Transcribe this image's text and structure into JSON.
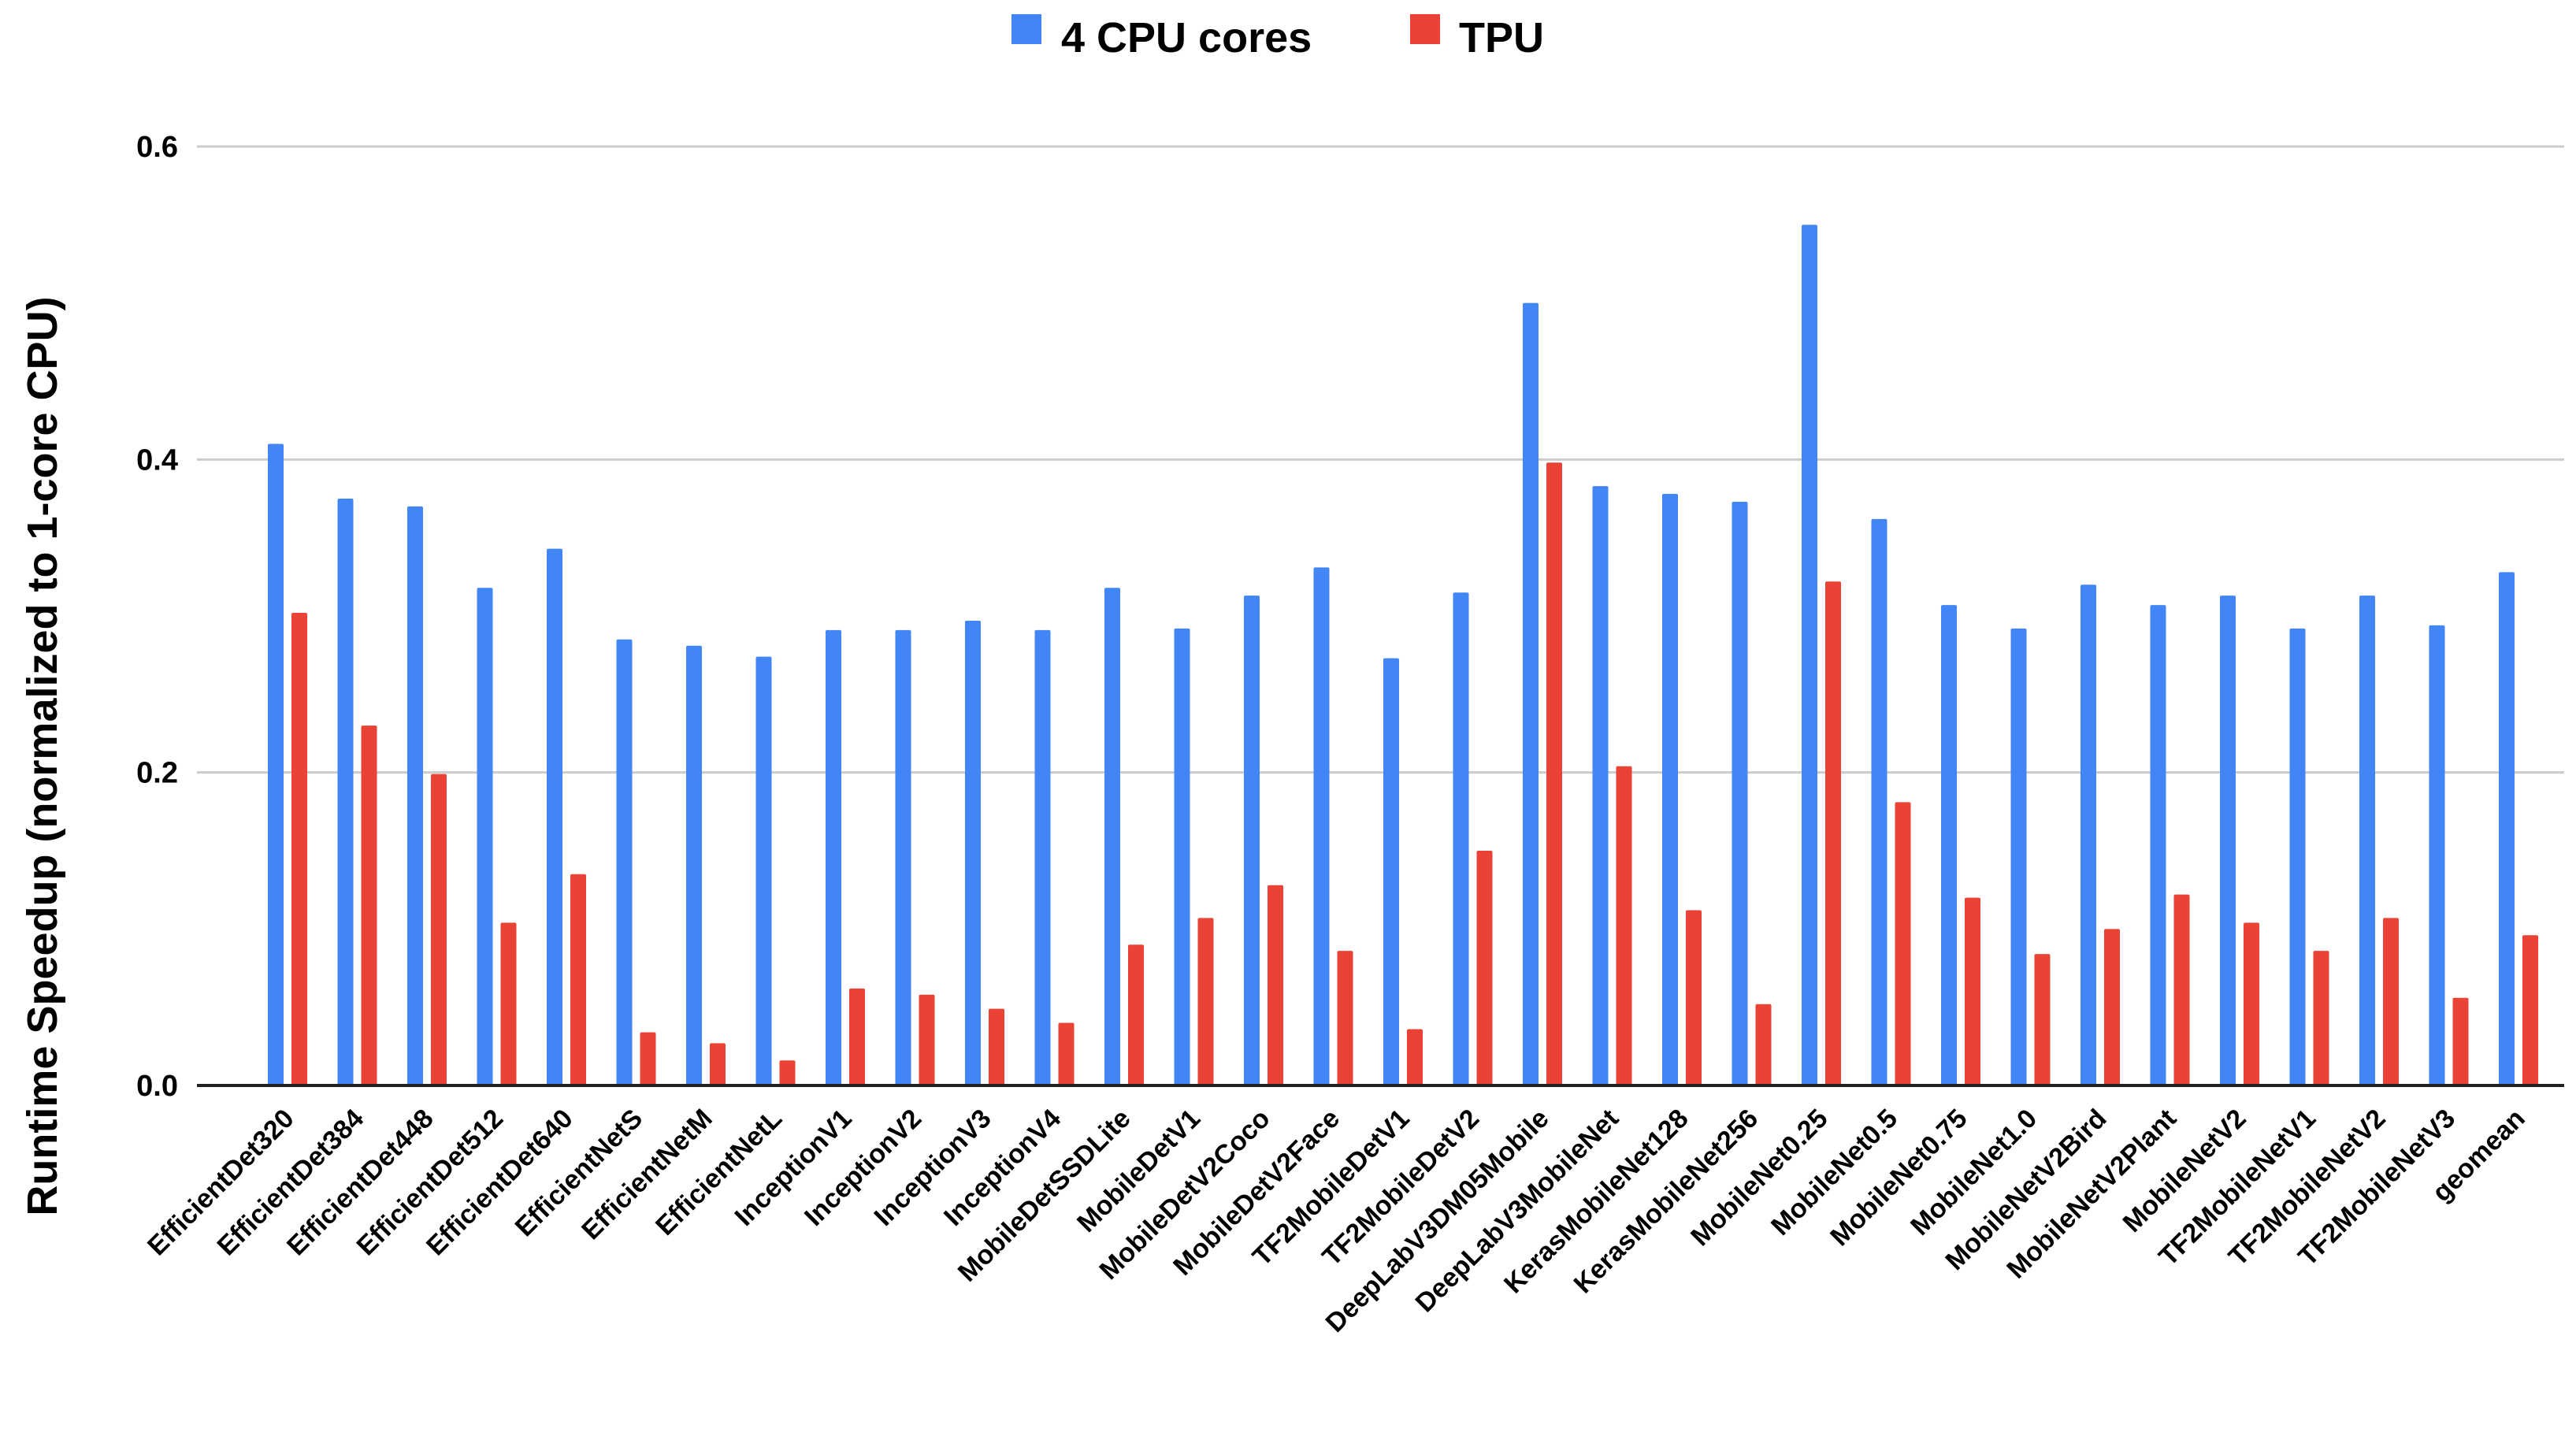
{
  "chart_data": {
    "type": "bar",
    "title": "",
    "xlabel": "",
    "ylabel": "Runtime Speedup (normalized to 1-core CPU)",
    "ylim": [
      0,
      0.6
    ],
    "yticks": [
      "0.0",
      "0.2",
      "0.4",
      "0.6"
    ],
    "ytick_values": [
      0,
      0.2,
      0.4,
      0.6
    ],
    "grid": true,
    "legend_position": "top-center",
    "categories": [
      "EfficientDet320",
      "EfficientDet384",
      "EfficientDet448",
      "EfficientDet512",
      "EfficientDet640",
      "EfficientNetS",
      "EfficientNetM",
      "EfficientNetL",
      "InceptionV1",
      "InceptionV2",
      "InceptionV3",
      "InceptionV4",
      "MobileDetSSDLite",
      "MobileDetV1",
      "MobileDetV2Coco",
      "MobileDetV2Face",
      "TF2MobileDetV1",
      "TF2MobileDetV2",
      "DeepLabV3DM05Mobile",
      "DeepLabV3MobileNet",
      "KerasMobileNet128",
      "KerasMobileNet256",
      "MobileNet0.25",
      "MobileNet0.5",
      "MobileNet0.75",
      "MobileNet1.0",
      "MobileNetV2Bird",
      "MobileNetV2Plant",
      "MobileNetV2",
      "TF2MobileNetV1",
      "TF2MobileNetV2",
      "TF2MobileNetV3",
      "geomean"
    ],
    "series": [
      {
        "name": "4 CPU cores",
        "color": "#4285f4",
        "values": [
          0.41,
          0.375,
          0.37,
          0.318,
          0.343,
          0.285,
          0.281,
          0.274,
          0.291,
          0.291,
          0.297,
          0.291,
          0.318,
          0.292,
          0.313,
          0.331,
          0.273,
          0.315,
          0.5,
          0.383,
          0.378,
          0.373,
          0.55,
          0.362,
          0.307,
          0.292,
          0.32,
          0.307,
          0.313,
          0.292,
          0.313,
          0.294,
          0.328
        ]
      },
      {
        "name": "TPU",
        "color": "#ea4335",
        "values": [
          0.302,
          0.23,
          0.199,
          0.104,
          0.135,
          0.034,
          0.027,
          0.016,
          0.062,
          0.058,
          0.049,
          0.04,
          0.09,
          0.107,
          0.128,
          0.086,
          0.036,
          0.15,
          0.398,
          0.204,
          0.112,
          0.052,
          0.322,
          0.181,
          0.12,
          0.084,
          0.1,
          0.122,
          0.104,
          0.086,
          0.107,
          0.056,
          0.096
        ]
      }
    ]
  }
}
